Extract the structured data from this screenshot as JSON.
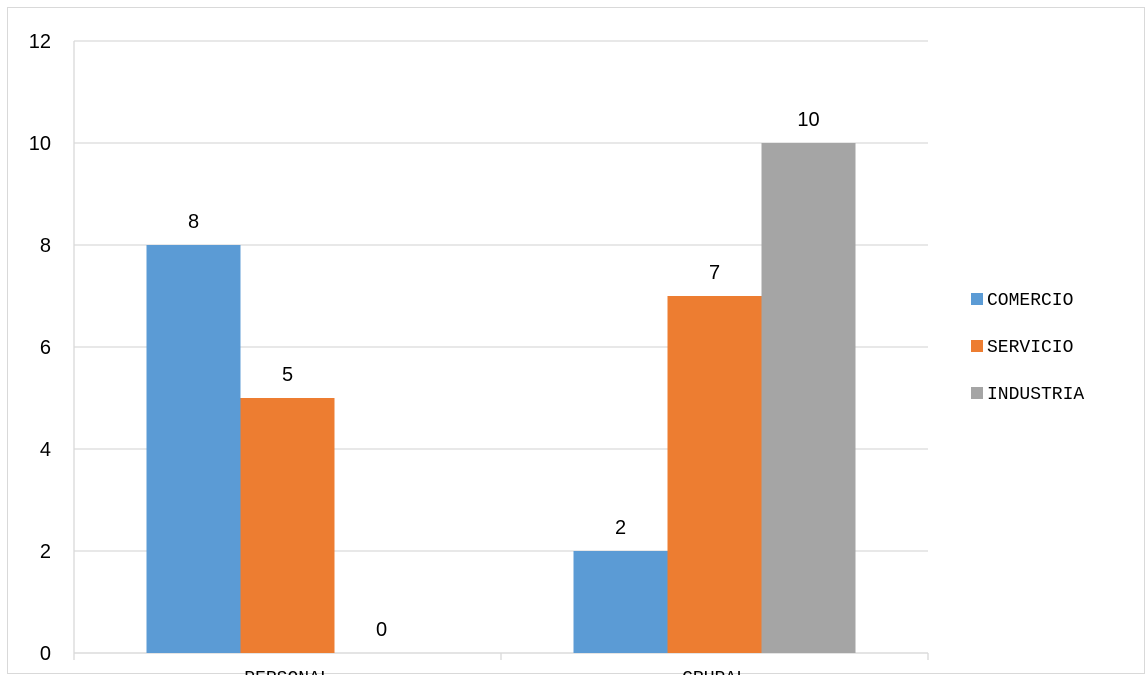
{
  "chart_data": {
    "type": "bar",
    "categories": [
      "PERSONAL",
      "GRUPAL"
    ],
    "series": [
      {
        "name": "COMERCIO",
        "values": [
          8,
          2
        ],
        "color": "#5b9bd5"
      },
      {
        "name": "SERVICIO",
        "values": [
          5,
          7
        ],
        "color": "#ed7d31"
      },
      {
        "name": "INDUSTRIA",
        "values": [
          0,
          10
        ],
        "color": "#a5a5a5"
      }
    ],
    "ylim": [
      0,
      12
    ],
    "yticks": [
      0,
      2,
      4,
      6,
      8,
      10,
      12
    ],
    "grid": true,
    "legend_position": "right",
    "data_labels": true,
    "gridline_color": "#d9d9d9"
  }
}
